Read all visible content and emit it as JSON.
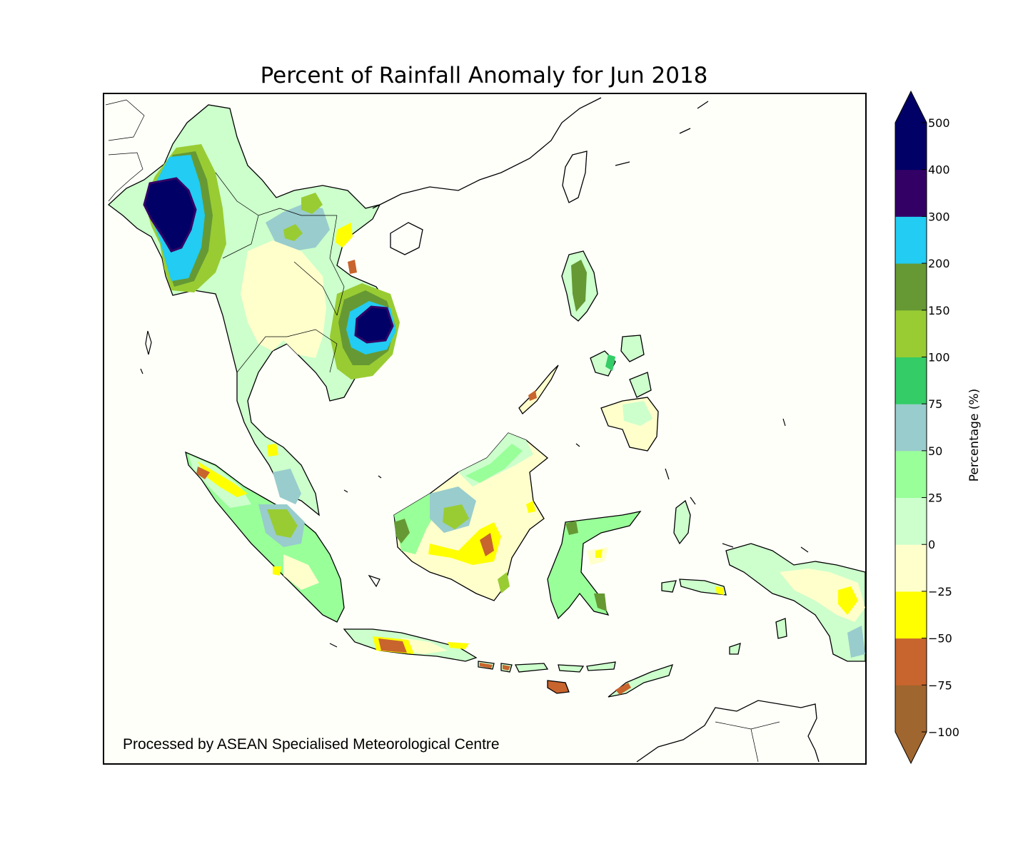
{
  "title": "Percent of Rainfall Anomaly for Jun 2018",
  "credit": "Processed by ASEAN Specialised Meteorological Centre",
  "colorbar": {
    "label": "Percentage (%)",
    "ticks": [
      "500",
      "400",
      "300",
      "200",
      "150",
      "100",
      "75",
      "50",
      "25",
      "0",
      "−25",
      "−50",
      "−75",
      "−100"
    ],
    "bins": [
      {
        "from": -100,
        "to": -75,
        "color": "#a0662f"
      },
      {
        "from": -75,
        "to": -50,
        "color": "#c8642d"
      },
      {
        "from": -50,
        "to": -25,
        "color": "#ffff00"
      },
      {
        "from": -25,
        "to": 0,
        "color": "#ffffcc"
      },
      {
        "from": 0,
        "to": 25,
        "color": "#ccffcc"
      },
      {
        "from": 25,
        "to": 50,
        "color": "#99ff99"
      },
      {
        "from": 50,
        "to": 75,
        "color": "#99cccc"
      },
      {
        "from": 75,
        "to": 100,
        "color": "#33cc66"
      },
      {
        "from": 100,
        "to": 150,
        "color": "#99cc33"
      },
      {
        "from": 150,
        "to": 200,
        "color": "#669933"
      },
      {
        "from": 200,
        "to": 300,
        "color": "#22ccf2"
      },
      {
        "from": 300,
        "to": 400,
        "color": "#330066"
      },
      {
        "from": 400,
        "to": 500,
        "color": "#000066"
      }
    ],
    "extend_min_color": "#a0662f",
    "extend_max_color": "#000066"
  }
}
